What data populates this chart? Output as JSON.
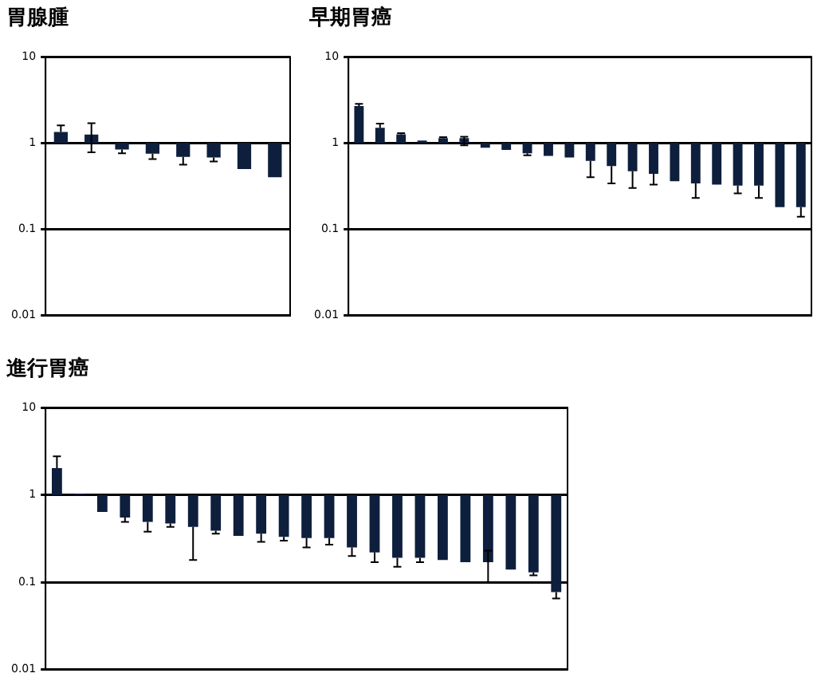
{
  "chart_data": [
    {
      "type": "bar",
      "title": "胃腺腫",
      "categories": [
        null,
        null,
        null,
        null,
        null,
        null,
        null,
        null
      ],
      "base": [
        1,
        1,
        1,
        1,
        1,
        1,
        1,
        1
      ],
      "values": [
        0.34,
        0.25,
        -0.16,
        -0.25,
        -0.31,
        -0.32,
        -0.5,
        -0.6
      ],
      "errors": [
        [
          1.34,
          1.6
        ],
        [
          0.78,
          1.7
        ],
        [
          0.76,
          0.84
        ],
        [
          0.65,
          0.75
        ],
        [
          0.56,
          0.69
        ],
        [
          0.61,
          0.68
        ],
        null,
        null
      ],
      "color": "#0d1f3c",
      "log": true,
      "ylim": [
        0.01,
        10
      ],
      "yticks": [
        0.01,
        0.1,
        1,
        10
      ],
      "grid": "y",
      "tick_labels": "y"
    },
    {
      "type": "bar",
      "title": "早期胃癌",
      "categories": [
        null,
        null,
        null,
        null,
        null,
        null,
        null,
        null,
        null,
        null,
        null,
        null,
        null,
        null,
        null,
        null,
        null,
        null,
        null,
        null,
        null,
        null
      ],
      "base": [
        1,
        1,
        1,
        1,
        1,
        1,
        1,
        1,
        1,
        1,
        1,
        1,
        1,
        1,
        1,
        1,
        1,
        1,
        1,
        1,
        1,
        1
      ],
      "values": [
        1.68,
        0.5,
        0.26,
        0.07,
        0.14,
        0.14,
        -0.12,
        -0.17,
        -0.24,
        -0.29,
        -0.32,
        -0.38,
        -0.46,
        -0.53,
        -0.56,
        -0.64,
        -0.66,
        -0.67,
        -0.68,
        -0.68,
        -0.82,
        -0.82
      ],
      "errors": [
        [
          2.68,
          2.84
        ],
        [
          1.5,
          1.68
        ],
        [
          1.26,
          1.3
        ],
        null,
        [
          1.14,
          1.17
        ],
        [
          0.94,
          1.18
        ],
        null,
        null,
        [
          0.72,
          0.76
        ],
        null,
        null,
        [
          0.4,
          0.62
        ],
        [
          0.34,
          0.54
        ],
        [
          0.3,
          0.47
        ],
        [
          0.33,
          0.44
        ],
        null,
        [
          0.23,
          0.34
        ],
        null,
        [
          0.26,
          0.32
        ],
        [
          0.23,
          0.32
        ],
        null,
        [
          0.14,
          0.18
        ]
      ],
      "color": "#0d1f3c",
      "log": true,
      "ylim": [
        0.01,
        10
      ],
      "yticks": [
        0.01,
        0.1,
        1,
        10
      ],
      "grid": "y",
      "tick_labels": "y"
    },
    {
      "type": "bar",
      "title": "進行胃癌",
      "categories": [
        null,
        null,
        null,
        null,
        null,
        null,
        null,
        null,
        null,
        null,
        null,
        null,
        null,
        null,
        null,
        null,
        null,
        null,
        null,
        null,
        null,
        null,
        null
      ],
      "base": [
        1,
        1,
        1,
        1,
        1,
        1,
        1,
        1,
        1,
        1,
        1,
        1,
        1,
        1,
        1,
        1,
        1,
        1,
        1,
        1,
        1,
        1,
        1
      ],
      "values": [
        1.03,
        0.03,
        -0.36,
        -0.45,
        -0.51,
        -0.53,
        -0.57,
        -0.61,
        -0.66,
        -0.64,
        -0.67,
        -0.68,
        -0.68,
        -0.75,
        -0.78,
        -0.81,
        -0.81,
        -0.82,
        -0.83,
        -0.83,
        -0.86,
        -0.87,
        -0.923
      ],
      "errors": [
        [
          2.03,
          2.77
        ],
        null,
        null,
        [
          0.49,
          0.55
        ],
        [
          0.38,
          0.49
        ],
        [
          0.43,
          0.47
        ],
        [
          0.18,
          0.43
        ],
        [
          0.36,
          0.39
        ],
        null,
        [
          0.29,
          0.36
        ],
        [
          0.3,
          0.33
        ],
        [
          0.25,
          0.32
        ],
        [
          0.27,
          0.32
        ],
        [
          0.2,
          0.25
        ],
        [
          0.17,
          0.22
        ],
        [
          0.15,
          0.19
        ],
        [
          0.17,
          0.19
        ],
        null,
        null,
        [
          0.1,
          0.23
        ],
        null,
        [
          0.12,
          0.13
        ],
        [
          0.065,
          0.077
        ]
      ],
      "color": "#0d1f3c",
      "log": true,
      "ylim": [
        0.01,
        10
      ],
      "yticks": [
        0.01,
        0.1,
        1,
        10
      ],
      "grid": "y",
      "tick_labels": "y"
    }
  ]
}
